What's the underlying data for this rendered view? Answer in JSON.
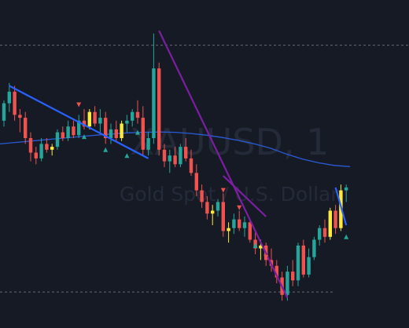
{
  "watermark": {
    "symbol": "XAUUSD, 1",
    "description": "Gold Spot / U.S. Dollar"
  },
  "colors": {
    "background": "#161a25",
    "up": "#26a69a",
    "down": "#ef5350",
    "signal": "#ffeb3b",
    "trend_blue": "#2962ff",
    "trend_purple": "#7b1fa2",
    "moving_average": "#2a5bd7",
    "dashed_level": "#9aa0aa",
    "marker_down": "#ef5350",
    "marker_up": "#26a69a"
  },
  "chart_data": {
    "type": "candlestick",
    "ylim": [
      0,
      100
    ],
    "grid": false,
    "legend": "none",
    "candles": [
      {
        "o": 66,
        "h": 73,
        "l": 64,
        "c": 72,
        "k": "up"
      },
      {
        "o": 72,
        "h": 79,
        "l": 69,
        "c": 76,
        "k": "up"
      },
      {
        "o": 76,
        "h": 78,
        "l": 66,
        "c": 68,
        "k": "down"
      },
      {
        "o": 68,
        "h": 70,
        "l": 62,
        "c": 67,
        "k": "down"
      },
      {
        "o": 67,
        "h": 69,
        "l": 58,
        "c": 60,
        "k": "down"
      },
      {
        "o": 60,
        "h": 62,
        "l": 52,
        "c": 55,
        "k": "down"
      },
      {
        "o": 55,
        "h": 57,
        "l": 51,
        "c": 53,
        "k": "down"
      },
      {
        "o": 53,
        "h": 60,
        "l": 52,
        "c": 58,
        "k": "up"
      },
      {
        "o": 58,
        "h": 60,
        "l": 55,
        "c": 56,
        "k": "down"
      },
      {
        "o": 56,
        "h": 58,
        "l": 54,
        "c": 57,
        "k": "signal"
      },
      {
        "o": 57,
        "h": 63,
        "l": 56,
        "c": 62,
        "k": "up"
      },
      {
        "o": 62,
        "h": 64,
        "l": 59,
        "c": 60,
        "k": "down"
      },
      {
        "o": 60,
        "h": 66,
        "l": 59,
        "c": 64,
        "k": "up"
      },
      {
        "o": 64,
        "h": 66,
        "l": 60,
        "c": 61,
        "k": "down"
      },
      {
        "o": 61,
        "h": 68,
        "l": 60,
        "c": 66,
        "k": "up"
      },
      {
        "o": 66,
        "h": 70,
        "l": 63,
        "c": 64,
        "k": "down"
      },
      {
        "o": 64,
        "h": 70,
        "l": 63,
        "c": 69,
        "k": "signal"
      },
      {
        "o": 69,
        "h": 71,
        "l": 64,
        "c": 65,
        "k": "down"
      },
      {
        "o": 65,
        "h": 70,
        "l": 62,
        "c": 67,
        "k": "up"
      },
      {
        "o": 67,
        "h": 69,
        "l": 58,
        "c": 60,
        "k": "down"
      },
      {
        "o": 60,
        "h": 65,
        "l": 58,
        "c": 63,
        "k": "up"
      },
      {
        "o": 63,
        "h": 66,
        "l": 59,
        "c": 60,
        "k": "down"
      },
      {
        "o": 60,
        "h": 66,
        "l": 59,
        "c": 65,
        "k": "signal"
      },
      {
        "o": 65,
        "h": 68,
        "l": 62,
        "c": 66,
        "k": "up"
      },
      {
        "o": 66,
        "h": 70,
        "l": 64,
        "c": 69,
        "k": "up"
      },
      {
        "o": 69,
        "h": 73,
        "l": 65,
        "c": 67,
        "k": "down"
      },
      {
        "o": 67,
        "h": 71,
        "l": 54,
        "c": 56,
        "k": "down"
      },
      {
        "o": 56,
        "h": 62,
        "l": 54,
        "c": 60,
        "k": "up"
      },
      {
        "o": 60,
        "h": 96,
        "l": 58,
        "c": 84,
        "k": "up"
      },
      {
        "o": 84,
        "h": 86,
        "l": 54,
        "c": 56,
        "k": "down"
      },
      {
        "o": 56,
        "h": 58,
        "l": 50,
        "c": 52,
        "k": "down"
      },
      {
        "o": 52,
        "h": 56,
        "l": 48,
        "c": 54,
        "k": "up"
      },
      {
        "o": 54,
        "h": 57,
        "l": 50,
        "c": 51,
        "k": "down"
      },
      {
        "o": 51,
        "h": 58,
        "l": 50,
        "c": 57,
        "k": "up"
      },
      {
        "o": 57,
        "h": 60,
        "l": 52,
        "c": 53,
        "k": "down"
      },
      {
        "o": 53,
        "h": 56,
        "l": 47,
        "c": 48,
        "k": "down"
      },
      {
        "o": 48,
        "h": 51,
        "l": 40,
        "c": 42,
        "k": "down"
      },
      {
        "o": 42,
        "h": 44,
        "l": 36,
        "c": 38,
        "k": "down"
      },
      {
        "o": 38,
        "h": 40,
        "l": 32,
        "c": 34,
        "k": "down"
      },
      {
        "o": 34,
        "h": 37,
        "l": 30,
        "c": 35,
        "k": "signal"
      },
      {
        "o": 35,
        "h": 39,
        "l": 33,
        "c": 38,
        "k": "up"
      },
      {
        "o": 38,
        "h": 41,
        "l": 26,
        "c": 28,
        "k": "down"
      },
      {
        "o": 28,
        "h": 31,
        "l": 24,
        "c": 29,
        "k": "signal"
      },
      {
        "o": 29,
        "h": 34,
        "l": 27,
        "c": 32,
        "k": "up"
      },
      {
        "o": 32,
        "h": 35,
        "l": 28,
        "c": 29,
        "k": "down"
      },
      {
        "o": 29,
        "h": 33,
        "l": 26,
        "c": 31,
        "k": "up"
      },
      {
        "o": 31,
        "h": 32,
        "l": 24,
        "c": 25,
        "k": "down"
      },
      {
        "o": 25,
        "h": 28,
        "l": 20,
        "c": 22,
        "k": "down"
      },
      {
        "o": 22,
        "h": 25,
        "l": 18,
        "c": 23,
        "k": "signal"
      },
      {
        "o": 23,
        "h": 24,
        "l": 16,
        "c": 18,
        "k": "down"
      },
      {
        "o": 18,
        "h": 22,
        "l": 14,
        "c": 16,
        "k": "down"
      },
      {
        "o": 16,
        "h": 18,
        "l": 10,
        "c": 12,
        "k": "down"
      },
      {
        "o": 12,
        "h": 14,
        "l": 4,
        "c": 6,
        "k": "down"
      },
      {
        "o": 6,
        "h": 16,
        "l": 4,
        "c": 14,
        "k": "up"
      },
      {
        "o": 14,
        "h": 18,
        "l": 9,
        "c": 11,
        "k": "down"
      },
      {
        "o": 11,
        "h": 24,
        "l": 9,
        "c": 23,
        "k": "up"
      },
      {
        "o": 23,
        "h": 25,
        "l": 12,
        "c": 13,
        "k": "down"
      },
      {
        "o": 13,
        "h": 22,
        "l": 12,
        "c": 19,
        "k": "up"
      },
      {
        "o": 19,
        "h": 26,
        "l": 18,
        "c": 25,
        "k": "up"
      },
      {
        "o": 25,
        "h": 30,
        "l": 23,
        "c": 29,
        "k": "up"
      },
      {
        "o": 29,
        "h": 32,
        "l": 24,
        "c": 26,
        "k": "down"
      },
      {
        "o": 26,
        "h": 36,
        "l": 25,
        "c": 35,
        "k": "signal"
      },
      {
        "o": 35,
        "h": 37,
        "l": 27,
        "c": 29,
        "k": "down"
      },
      {
        "o": 29,
        "h": 44,
        "l": 28,
        "c": 42,
        "k": "signal"
      },
      {
        "o": 42,
        "h": 44,
        "l": 38,
        "c": 43,
        "k": "up"
      }
    ],
    "moving_average": [
      58,
      58.5,
      59,
      59.5,
      60,
      60.5,
      61,
      61.4,
      61.8,
      62,
      62.1,
      62,
      61.6,
      61,
      60.2,
      59.2,
      58,
      56.5,
      54.5,
      52.8,
      51.5,
      50.6,
      50.2
    ],
    "level_lines": [
      92,
      7
    ],
    "trend_lines": [
      {
        "name": "blue-trendline",
        "color": "trend_blue",
        "from": [
          1,
          78
        ],
        "to": [
          27,
          53
        ]
      },
      {
        "name": "purple-trendline",
        "color": "trend_purple",
        "from": [
          29,
          97
        ],
        "to": [
          53,
          5
        ]
      },
      {
        "name": "purple-trendline-2",
        "color": "trend_purple",
        "from": [
          41,
          47
        ],
        "to": [
          49,
          33
        ]
      },
      {
        "name": "blue-trendline-2",
        "color": "trend_blue",
        "from": [
          62,
          43
        ],
        "to": [
          64,
          30
        ]
      }
    ],
    "markers": [
      {
        "i": 14,
        "dir": "down",
        "v": 71.5
      },
      {
        "i": 15,
        "dir": "up",
        "v": 60.5
      },
      {
        "i": 19,
        "dir": "up",
        "v": 56
      },
      {
        "i": 25,
        "dir": "up",
        "v": 62
      },
      {
        "i": 41,
        "dir": "down",
        "v": 42
      },
      {
        "i": 44,
        "dir": "down",
        "v": 36
      },
      {
        "i": 47,
        "dir": "up",
        "v": 23
      },
      {
        "i": 49,
        "dir": "down",
        "v": 19
      },
      {
        "i": 64,
        "dir": "up",
        "v": 26
      },
      {
        "i": 23,
        "dir": "up",
        "v": 54
      }
    ]
  }
}
